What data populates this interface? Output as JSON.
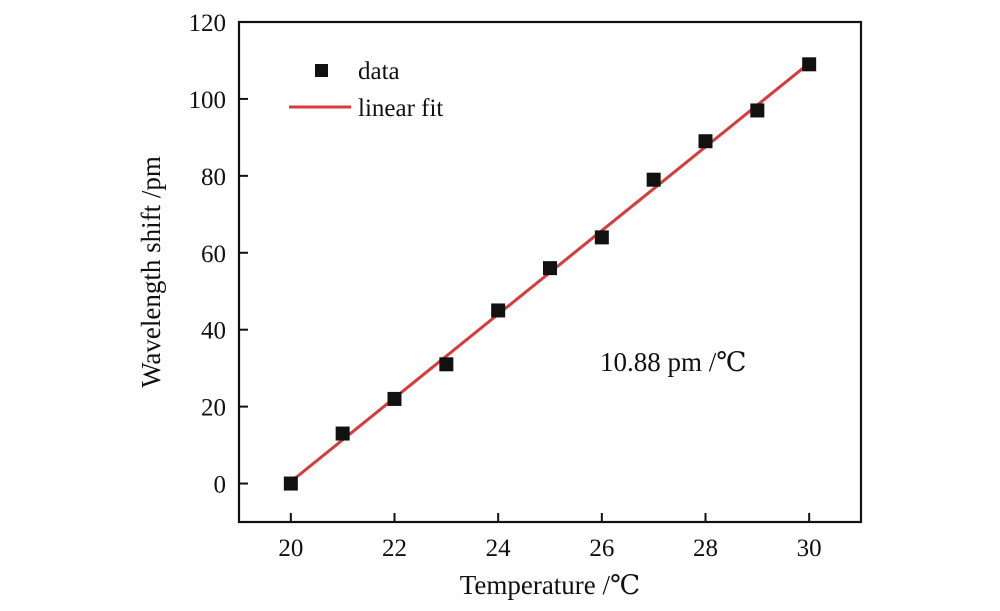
{
  "chart_data": {
    "type": "scatter",
    "title": "",
    "xlabel": "Temperature /℃",
    "ylabel": "Wavelength shift /pm",
    "xlim": [
      19,
      31
    ],
    "ylim": [
      -10,
      120
    ],
    "xticks": [
      20,
      22,
      24,
      26,
      28,
      30
    ],
    "yticks": [
      0,
      20,
      40,
      60,
      80,
      100,
      120
    ],
    "grid": false,
    "legend_position": "top-left",
    "series": [
      {
        "name": "data",
        "kind": "scatter",
        "color": "#111111",
        "x": [
          20,
          21,
          22,
          23,
          24,
          25,
          26,
          27,
          28,
          29,
          30
        ],
        "y": [
          0,
          13,
          22,
          31,
          45,
          56,
          64,
          79,
          89,
          97,
          109
        ]
      },
      {
        "name": "linear fit",
        "kind": "line",
        "color": "#d93a3a",
        "x": [
          20,
          30
        ],
        "y": [
          0.5,
          109.3
        ]
      }
    ],
    "annotation": "10.88 pm /℃"
  }
}
